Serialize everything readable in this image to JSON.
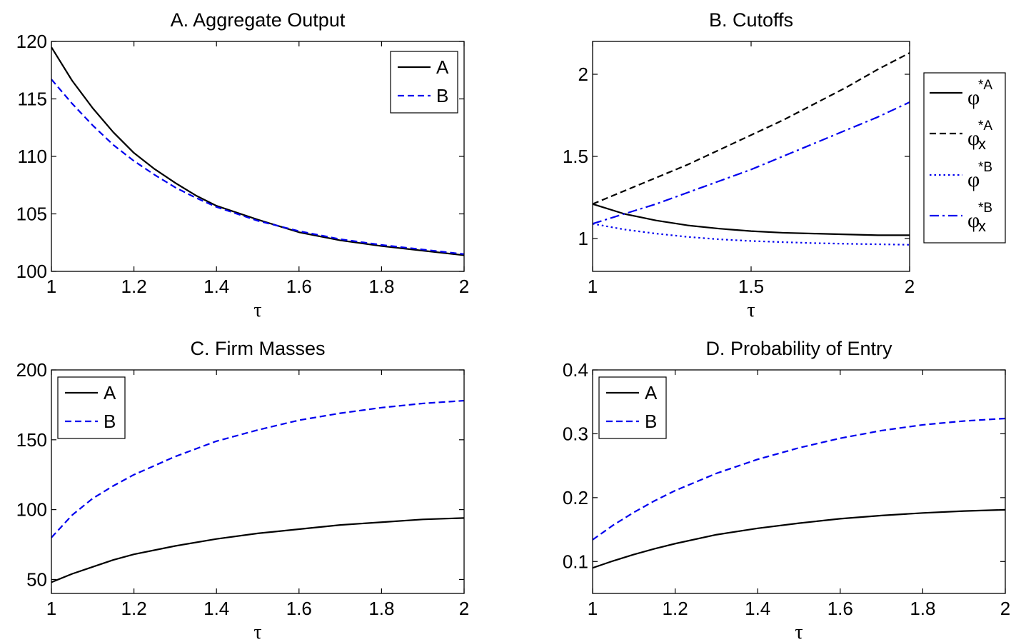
{
  "chart_data": [
    {
      "id": "A",
      "type": "line",
      "title": "A. Aggregate Output",
      "xlabel": "τ",
      "ylabel": "",
      "xlim": [
        1,
        2
      ],
      "ylim": [
        100,
        120
      ],
      "xticks": [
        1,
        1.2,
        1.4,
        1.6,
        1.8,
        2
      ],
      "xtick_labels": [
        "1",
        "1.2",
        "1.4",
        "1.6",
        "1.8",
        "2"
      ],
      "yticks": [
        100,
        105,
        110,
        115,
        120
      ],
      "ytick_labels": [
        "100",
        "105",
        "110",
        "115",
        "120"
      ],
      "grid": false,
      "legend": {
        "placement": "top-right",
        "entries": [
          {
            "label": "A",
            "series": 0
          },
          {
            "label": "B",
            "series": 1
          }
        ]
      },
      "series": [
        {
          "name": "A",
          "color": "#000000",
          "style": "solid",
          "x": [
            1,
            1.05,
            1.1,
            1.15,
            1.2,
            1.25,
            1.3,
            1.35,
            1.4,
            1.5,
            1.6,
            1.7,
            1.8,
            1.9,
            2
          ],
          "y": [
            119.5,
            116.6,
            114.2,
            112.1,
            110.3,
            108.9,
            107.7,
            106.6,
            105.7,
            104.5,
            103.4,
            102.7,
            102.2,
            101.8,
            101.4
          ]
        },
        {
          "name": "B",
          "color": "#0000ee",
          "style": "dashed",
          "x": [
            1,
            1.05,
            1.1,
            1.15,
            1.2,
            1.25,
            1.3,
            1.35,
            1.4,
            1.5,
            1.6,
            1.7,
            1.8,
            1.9,
            2
          ],
          "y": [
            116.7,
            114.6,
            112.7,
            111.0,
            109.6,
            108.4,
            107.3,
            106.4,
            105.6,
            104.4,
            103.5,
            102.8,
            102.3,
            101.9,
            101.5
          ]
        }
      ]
    },
    {
      "id": "B",
      "type": "line",
      "title": "B. Cutoffs",
      "xlabel": "τ",
      "ylabel": "",
      "xlim": [
        1,
        2
      ],
      "ylim": [
        0.8,
        2.2
      ],
      "xticks": [
        1,
        1.5,
        2
      ],
      "xtick_labels": [
        "1",
        "1.5",
        "2"
      ],
      "yticks": [
        1,
        1.5,
        2
      ],
      "ytick_labels": [
        "1",
        "1.5",
        "2"
      ],
      "grid": false,
      "legend": {
        "placement": "outside-right",
        "entries": [
          {
            "symbol": "φ",
            "sup": "*A",
            "sub": "",
            "series": 0
          },
          {
            "symbol": "φ",
            "sup": "*A",
            "sub": "x",
            "series": 1
          },
          {
            "symbol": "φ",
            "sup": "*B",
            "sub": "",
            "series": 2
          },
          {
            "symbol": "φ",
            "sup": "*B",
            "sub": "x",
            "series": 3
          }
        ]
      },
      "series": [
        {
          "color": "#000000",
          "style": "solid",
          "x": [
            1,
            1.1,
            1.2,
            1.3,
            1.4,
            1.5,
            1.6,
            1.7,
            1.8,
            1.9,
            2
          ],
          "y": [
            1.21,
            1.15,
            1.11,
            1.08,
            1.06,
            1.045,
            1.035,
            1.03,
            1.025,
            1.02,
            1.02
          ]
        },
        {
          "color": "#000000",
          "style": "dashed",
          "x": [
            1,
            1.1,
            1.2,
            1.3,
            1.4,
            1.5,
            1.6,
            1.7,
            1.8,
            1.9,
            2
          ],
          "y": [
            1.21,
            1.29,
            1.37,
            1.45,
            1.54,
            1.63,
            1.72,
            1.82,
            1.92,
            2.03,
            2.13
          ]
        },
        {
          "color": "#0000ee",
          "style": "dotted",
          "x": [
            1,
            1.1,
            1.2,
            1.3,
            1.4,
            1.5,
            1.6,
            1.7,
            1.8,
            1.9,
            2
          ],
          "y": [
            1.09,
            1.055,
            1.03,
            1.01,
            0.995,
            0.985,
            0.978,
            0.972,
            0.968,
            0.965,
            0.962
          ]
        },
        {
          "color": "#0000ee",
          "style": "dashdot",
          "x": [
            1,
            1.1,
            1.2,
            1.3,
            1.4,
            1.5,
            1.6,
            1.7,
            1.8,
            1.9,
            2
          ],
          "y": [
            1.09,
            1.15,
            1.21,
            1.28,
            1.35,
            1.42,
            1.5,
            1.58,
            1.66,
            1.74,
            1.83
          ]
        }
      ]
    },
    {
      "id": "C",
      "type": "line",
      "title": "C. Firm Masses",
      "xlabel": "τ",
      "ylabel": "",
      "xlim": [
        1,
        2
      ],
      "ylim": [
        40,
        200
      ],
      "xticks": [
        1,
        1.2,
        1.4,
        1.6,
        1.8,
        2
      ],
      "xtick_labels": [
        "1",
        "1.2",
        "1.4",
        "1.6",
        "1.8",
        "2"
      ],
      "yticks": [
        50,
        100,
        150,
        200
      ],
      "ytick_labels": [
        "50",
        "100",
        "150",
        "200"
      ],
      "grid": false,
      "legend": {
        "placement": "top-left",
        "entries": [
          {
            "label": "A",
            "series": 0
          },
          {
            "label": "B",
            "series": 1
          }
        ]
      },
      "series": [
        {
          "name": "A",
          "color": "#000000",
          "style": "solid",
          "x": [
            1,
            1.05,
            1.1,
            1.15,
            1.2,
            1.3,
            1.4,
            1.5,
            1.6,
            1.7,
            1.8,
            1.9,
            2
          ],
          "y": [
            48,
            54,
            59,
            64,
            68,
            74,
            79,
            83,
            86,
            89,
            91,
            93,
            94
          ]
        },
        {
          "name": "B",
          "color": "#0000ee",
          "style": "dashed",
          "x": [
            1,
            1.05,
            1.1,
            1.15,
            1.2,
            1.3,
            1.4,
            1.5,
            1.6,
            1.7,
            1.8,
            1.9,
            2
          ],
          "y": [
            80,
            96,
            108,
            117,
            125,
            138,
            149,
            157,
            164,
            169,
            173,
            176,
            178
          ]
        }
      ]
    },
    {
      "id": "D",
      "type": "line",
      "title": "D. Probability of Entry",
      "xlabel": "τ",
      "ylabel": "",
      "xlim": [
        1,
        2
      ],
      "ylim": [
        0.05,
        0.4
      ],
      "xticks": [
        1,
        1.2,
        1.4,
        1.6,
        1.8,
        2
      ],
      "xtick_labels": [
        "1",
        "1.2",
        "1.4",
        "1.6",
        "1.8",
        "2"
      ],
      "yticks": [
        0.1,
        0.2,
        0.3,
        0.4
      ],
      "ytick_labels": [
        "0.1",
        "0.2",
        "0.3",
        "0.4"
      ],
      "grid": false,
      "legend": {
        "placement": "top-left",
        "entries": [
          {
            "label": "A",
            "series": 0
          },
          {
            "label": "B",
            "series": 1
          }
        ]
      },
      "series": [
        {
          "name": "A",
          "color": "#000000",
          "style": "solid",
          "x": [
            1,
            1.05,
            1.1,
            1.15,
            1.2,
            1.3,
            1.4,
            1.5,
            1.6,
            1.7,
            1.8,
            1.9,
            2
          ],
          "y": [
            0.09,
            0.101,
            0.111,
            0.12,
            0.128,
            0.142,
            0.152,
            0.16,
            0.167,
            0.172,
            0.176,
            0.179,
            0.181
          ]
        },
        {
          "name": "B",
          "color": "#0000ee",
          "style": "dashed",
          "x": [
            1,
            1.05,
            1.1,
            1.15,
            1.2,
            1.3,
            1.4,
            1.5,
            1.6,
            1.7,
            1.8,
            1.9,
            2
          ],
          "y": [
            0.134,
            0.157,
            0.177,
            0.195,
            0.211,
            0.238,
            0.26,
            0.278,
            0.293,
            0.305,
            0.314,
            0.32,
            0.324
          ]
        }
      ]
    }
  ]
}
